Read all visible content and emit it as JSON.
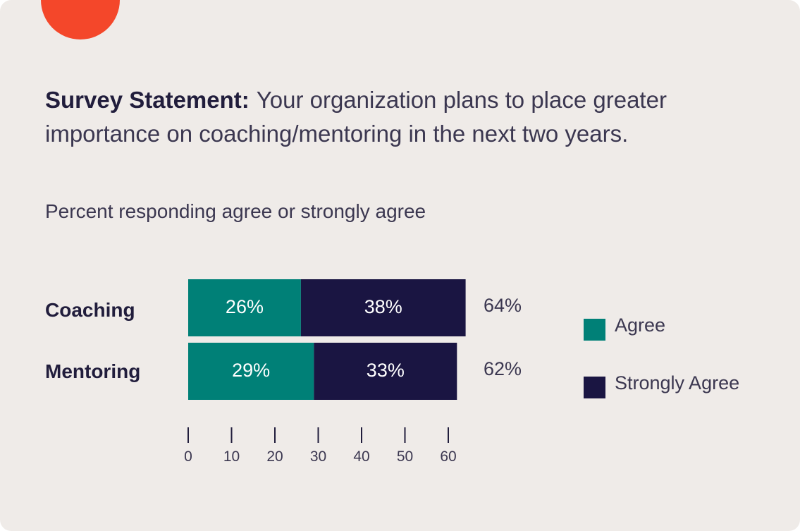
{
  "statement": {
    "lead": "Survey Statement:",
    "text": "Your organization plans to place greater importance on coaching/mentoring in the next two years."
  },
  "subtitle": "Percent responding agree or strongly agree",
  "colors": {
    "accent": "#f4472a",
    "agree": "#008077",
    "strongly_agree": "#1a1542",
    "background": "#efebe8",
    "text": "#3b3750"
  },
  "legend": {
    "agree": "Agree",
    "strongly_agree": "Strongly Agree"
  },
  "chart_data": {
    "type": "bar",
    "orientation": "horizontal",
    "stacked": true,
    "categories": [
      "Coaching",
      "Mentoring"
    ],
    "series": [
      {
        "name": "Agree",
        "values": [
          26,
          29
        ],
        "labels": [
          "26%",
          "29%"
        ]
      },
      {
        "name": "Strongly Agree",
        "values": [
          38,
          33
        ],
        "labels": [
          "38%",
          "33%"
        ]
      }
    ],
    "totals": [
      64,
      62
    ],
    "total_labels": [
      "64%",
      "62%"
    ],
    "xlim": [
      0,
      62
    ],
    "xticks": [
      0,
      10,
      20,
      30,
      40,
      50,
      60
    ],
    "title": "Percent responding agree or strongly agree",
    "legend_position": "right"
  }
}
